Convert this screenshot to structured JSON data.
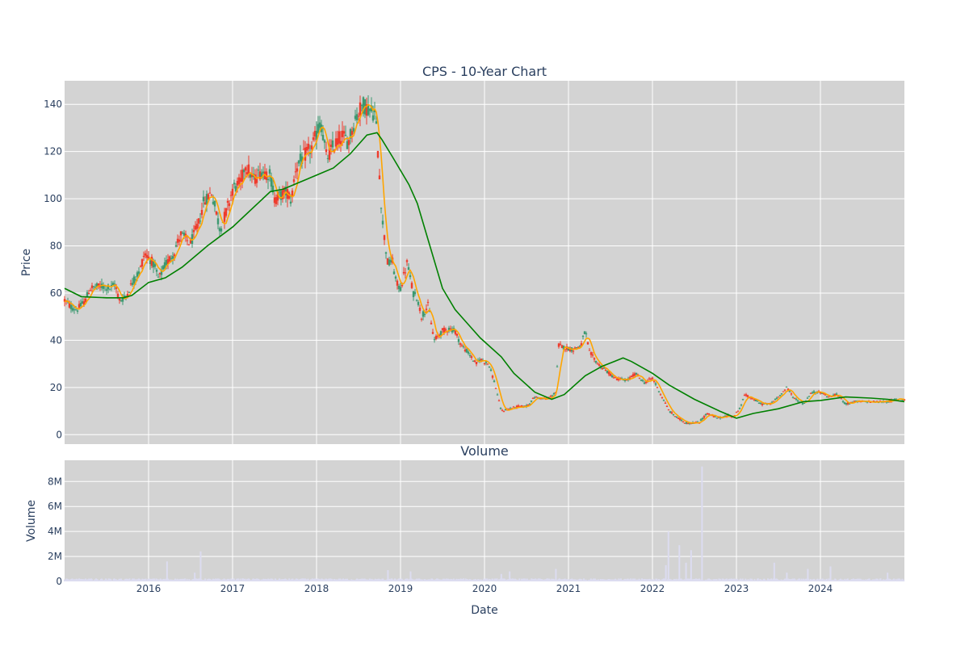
{
  "colors": {
    "plot_bg": "#d3d3d3",
    "grid": "#ffffff",
    "text": "#2a3f5f",
    "up": "#3d9970",
    "down": "#ef3b2c",
    "ma_short": "#ffa500",
    "ma_long": "#008000",
    "volume": "#dcdcf0"
  },
  "chart_data": [
    {
      "type": "candlestick",
      "title": "CPS - 10-Year Chart",
      "ylabel": "Price",
      "xlim": [
        2015.0,
        2025.0
      ],
      "ylim": [
        -4,
        150
      ],
      "yticks": [
        0,
        20,
        40,
        60,
        80,
        100,
        120,
        140
      ],
      "xticks": [
        2016,
        2017,
        2018,
        2019,
        2020,
        2021,
        2022,
        2023,
        2024
      ],
      "grid": true,
      "price_anchors": [
        [
          2015.0,
          57
        ],
        [
          2015.08,
          54
        ],
        [
          2015.15,
          53
        ],
        [
          2015.25,
          57
        ],
        [
          2015.3,
          62
        ],
        [
          2015.45,
          63
        ],
        [
          2015.55,
          62
        ],
        [
          2015.6,
          64
        ],
        [
          2015.65,
          57
        ],
        [
          2015.72,
          58
        ],
        [
          2015.8,
          64
        ],
        [
          2015.9,
          70
        ],
        [
          2015.95,
          77
        ],
        [
          2016.05,
          73
        ],
        [
          2016.12,
          66
        ],
        [
          2016.2,
          72
        ],
        [
          2016.3,
          77
        ],
        [
          2016.38,
          85
        ],
        [
          2016.5,
          81
        ],
        [
          2016.6,
          90
        ],
        [
          2016.65,
          98
        ],
        [
          2016.75,
          103
        ],
        [
          2016.85,
          87
        ],
        [
          2016.92,
          94
        ],
        [
          2017.0,
          104
        ],
        [
          2017.1,
          107
        ],
        [
          2017.15,
          115
        ],
        [
          2017.25,
          108
        ],
        [
          2017.35,
          112
        ],
        [
          2017.45,
          110
        ],
        [
          2017.5,
          100
        ],
        [
          2017.65,
          103
        ],
        [
          2017.7,
          99
        ],
        [
          2017.75,
          113
        ],
        [
          2017.85,
          118
        ],
        [
          2017.95,
          122
        ],
        [
          2018.05,
          133
        ],
        [
          2018.12,
          117
        ],
        [
          2018.2,
          122
        ],
        [
          2018.3,
          127
        ],
        [
          2018.38,
          124
        ],
        [
          2018.45,
          133
        ],
        [
          2018.55,
          140
        ],
        [
          2018.65,
          137
        ],
        [
          2018.7,
          136
        ],
        [
          2018.75,
          110
        ],
        [
          2018.78,
          92
        ],
        [
          2018.82,
          80
        ],
        [
          2018.85,
          72
        ],
        [
          2018.9,
          74
        ],
        [
          2018.95,
          64
        ],
        [
          2019.0,
          62
        ],
        [
          2019.08,
          73
        ],
        [
          2019.15,
          60
        ],
        [
          2019.2,
          58
        ],
        [
          2019.25,
          50
        ],
        [
          2019.33,
          55
        ],
        [
          2019.4,
          40
        ],
        [
          2019.5,
          44
        ],
        [
          2019.58,
          45
        ],
        [
          2019.65,
          44
        ],
        [
          2019.72,
          38
        ],
        [
          2019.8,
          35
        ],
        [
          2019.9,
          30
        ],
        [
          2019.95,
          32
        ],
        [
          2020.05,
          30
        ],
        [
          2020.12,
          22
        ],
        [
          2020.2,
          10
        ],
        [
          2020.3,
          11
        ],
        [
          2020.4,
          12
        ],
        [
          2020.5,
          12
        ],
        [
          2020.6,
          16
        ],
        [
          2020.75,
          15
        ],
        [
          2020.85,
          18
        ],
        [
          2020.88,
          38
        ],
        [
          2020.95,
          37
        ],
        [
          2021.05,
          36
        ],
        [
          2021.15,
          38
        ],
        [
          2021.2,
          44
        ],
        [
          2021.25,
          35
        ],
        [
          2021.35,
          30
        ],
        [
          2021.45,
          27
        ],
        [
          2021.55,
          24
        ],
        [
          2021.7,
          23
        ],
        [
          2021.8,
          26
        ],
        [
          2021.9,
          22
        ],
        [
          2022.0,
          24
        ],
        [
          2022.1,
          17
        ],
        [
          2022.2,
          10
        ],
        [
          2022.3,
          7
        ],
        [
          2022.4,
          5
        ],
        [
          2022.55,
          5
        ],
        [
          2022.65,
          9
        ],
        [
          2022.78,
          7
        ],
        [
          2022.9,
          8
        ],
        [
          2022.98,
          8
        ],
        [
          2023.05,
          12
        ],
        [
          2023.1,
          17
        ],
        [
          2023.2,
          15
        ],
        [
          2023.3,
          13
        ],
        [
          2023.4,
          13
        ],
        [
          2023.5,
          16
        ],
        [
          2023.6,
          20
        ],
        [
          2023.7,
          15
        ],
        [
          2023.8,
          13
        ],
        [
          2023.9,
          18
        ],
        [
          2024.0,
          18
        ],
        [
          2024.1,
          16
        ],
        [
          2024.2,
          17
        ],
        [
          2024.3,
          13
        ],
        [
          2024.4,
          14
        ],
        [
          2024.5,
          14
        ],
        [
          2024.6,
          14
        ],
        [
          2024.7,
          14
        ],
        [
          2024.8,
          14
        ],
        [
          2024.9,
          15
        ],
        [
          2025.0,
          15
        ]
      ],
      "series": [
        {
          "name": "",
          "color_key": "ma_short",
          "window_weeks": 5
        },
        {
          "name": "",
          "color_key": "ma_long",
          "points": [
            [
              2015.0,
              62
            ],
            [
              2015.2,
              58.5
            ],
            [
              2015.5,
              58
            ],
            [
              2015.7,
              58
            ],
            [
              2015.8,
              59
            ],
            [
              2016.0,
              64.5
            ],
            [
              2016.2,
              66.5
            ],
            [
              2016.4,
              71
            ],
            [
              2016.7,
              80
            ],
            [
              2017.0,
              88
            ],
            [
              2017.3,
              98
            ],
            [
              2017.45,
              103
            ],
            [
              2017.6,
              104
            ],
            [
              2017.8,
              107
            ],
            [
              2018.0,
              110
            ],
            [
              2018.2,
              113
            ],
            [
              2018.4,
              119
            ],
            [
              2018.6,
              127
            ],
            [
              2018.72,
              128
            ],
            [
              2018.78,
              125
            ],
            [
              2018.9,
              118
            ],
            [
              2019.1,
              106
            ],
            [
              2019.2,
              98
            ],
            [
              2019.35,
              80
            ],
            [
              2019.5,
              62
            ],
            [
              2019.65,
              53
            ],
            [
              2019.8,
              47
            ],
            [
              2019.95,
              41
            ],
            [
              2020.2,
              33
            ],
            [
              2020.35,
              26
            ],
            [
              2020.6,
              18
            ],
            [
              2020.8,
              15
            ],
            [
              2020.95,
              17
            ],
            [
              2021.2,
              25
            ],
            [
              2021.4,
              29
            ],
            [
              2021.65,
              32.5
            ],
            [
              2021.75,
              31
            ],
            [
              2022.0,
              26
            ],
            [
              2022.2,
              21
            ],
            [
              2022.5,
              15
            ],
            [
              2022.8,
              10
            ],
            [
              2023.0,
              7
            ],
            [
              2023.2,
              9
            ],
            [
              2023.5,
              11
            ],
            [
              2023.8,
              14
            ],
            [
              2024.0,
              14.5
            ],
            [
              2024.3,
              16
            ],
            [
              2024.6,
              15.5
            ],
            [
              2024.8,
              15
            ],
            [
              2025.0,
              14
            ]
          ]
        }
      ]
    },
    {
      "type": "bar",
      "title": "Volume",
      "xlabel": "Date",
      "ylabel": "Volume",
      "xlim": [
        2015.0,
        2025.0
      ],
      "ylim": [
        0,
        9700000
      ],
      "yticks": [
        0,
        2000000,
        4000000,
        6000000,
        8000000
      ],
      "ytick_labels": [
        "0",
        "2M",
        "4M",
        "6M",
        "8M"
      ],
      "xticks": [
        2016,
        2017,
        2018,
        2019,
        2020,
        2021,
        2022,
        2023,
        2024
      ],
      "grid": true,
      "spikes": [
        [
          2016.22,
          1600000
        ],
        [
          2016.62,
          2400000
        ],
        [
          2016.55,
          700000
        ],
        [
          2018.85,
          900000
        ],
        [
          2019.12,
          800000
        ],
        [
          2020.2,
          600000
        ],
        [
          2020.3,
          800000
        ],
        [
          2020.85,
          1000000
        ],
        [
          2022.16,
          1300000
        ],
        [
          2022.19,
          4000000
        ],
        [
          2022.32,
          2900000
        ],
        [
          2022.4,
          1500000
        ],
        [
          2022.46,
          2500000
        ],
        [
          2022.59,
          9200000
        ],
        [
          2023.45,
          1500000
        ],
        [
          2023.6,
          700000
        ],
        [
          2023.85,
          1000000
        ],
        [
          2024.12,
          1200000
        ],
        [
          2024.8,
          700000
        ]
      ],
      "baseline_level": 150000
    }
  ],
  "axes": {
    "x_tick_labels": [
      "2016",
      "2017",
      "2018",
      "2019",
      "2020",
      "2021",
      "2022",
      "2023",
      "2024"
    ],
    "price_tick_labels": [
      "0",
      "20",
      "40",
      "60",
      "80",
      "100",
      "120",
      "140"
    ]
  }
}
